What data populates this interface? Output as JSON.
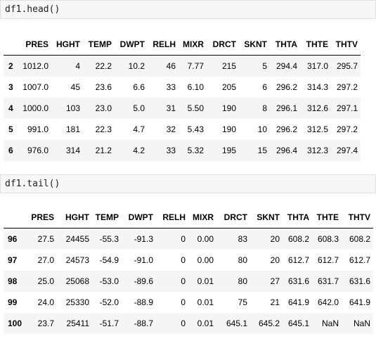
{
  "cells": {
    "head": {
      "code": "df1.head()",
      "columns": [
        "",
        "PRES",
        "HGHT",
        "TEMP",
        "DWPT",
        "RELH",
        "MIXR",
        "DRCT",
        "SKNT",
        "THTA",
        "THTE",
        "THTV"
      ],
      "rows": [
        [
          "2",
          "1012.0",
          "4",
          "22.2",
          "10.2",
          "46",
          "7.77",
          "215",
          "5",
          "294.4",
          "317.0",
          "295.7"
        ],
        [
          "3",
          "1007.0",
          "45",
          "23.6",
          "6.6",
          "33",
          "6.10",
          "205",
          "6",
          "296.2",
          "314.3",
          "297.2"
        ],
        [
          "4",
          "1000.0",
          "103",
          "23.0",
          "5.0",
          "31",
          "5.50",
          "190",
          "8",
          "296.1",
          "312.6",
          "297.1"
        ],
        [
          "5",
          "991.0",
          "181",
          "22.3",
          "4.7",
          "32",
          "5.43",
          "190",
          "10",
          "296.2",
          "312.5",
          "297.2"
        ],
        [
          "6",
          "976.0",
          "314",
          "21.2",
          "4.2",
          "33",
          "5.32",
          "195",
          "15",
          "296.4",
          "312.3",
          "297.4"
        ]
      ]
    },
    "tail": {
      "code": "df1.tail()",
      "columns": [
        "",
        "PRES",
        "HGHT",
        "TEMP",
        "DWPT",
        "RELH",
        "MIXR",
        "DRCT",
        "SKNT",
        "THTA",
        "THTE",
        "THTV"
      ],
      "rows": [
        [
          "96",
          "27.5",
          "24455",
          "-55.3",
          "-91.3",
          "0",
          "0.00",
          "83",
          "20",
          "608.2",
          "608.3",
          "608.2"
        ],
        [
          "97",
          "27.0",
          "24573",
          "-54.9",
          "-91.0",
          "0",
          "0.00",
          "80",
          "20",
          "612.7",
          "612.7",
          "612.7"
        ],
        [
          "98",
          "25.0",
          "25068",
          "-53.0",
          "-89.6",
          "0",
          "0.01",
          "80",
          "27",
          "631.6",
          "631.7",
          "631.6"
        ],
        [
          "99",
          "24.0",
          "25330",
          "-52.0",
          "-88.9",
          "0",
          "0.01",
          "75",
          "21",
          "641.9",
          "642.0",
          "641.9"
        ],
        [
          "100",
          "23.7",
          "25411",
          "-51.7",
          "-88.7",
          "0",
          "0.01",
          "645.1",
          "645.2",
          "645.1",
          "NaN",
          "NaN"
        ]
      ]
    }
  }
}
